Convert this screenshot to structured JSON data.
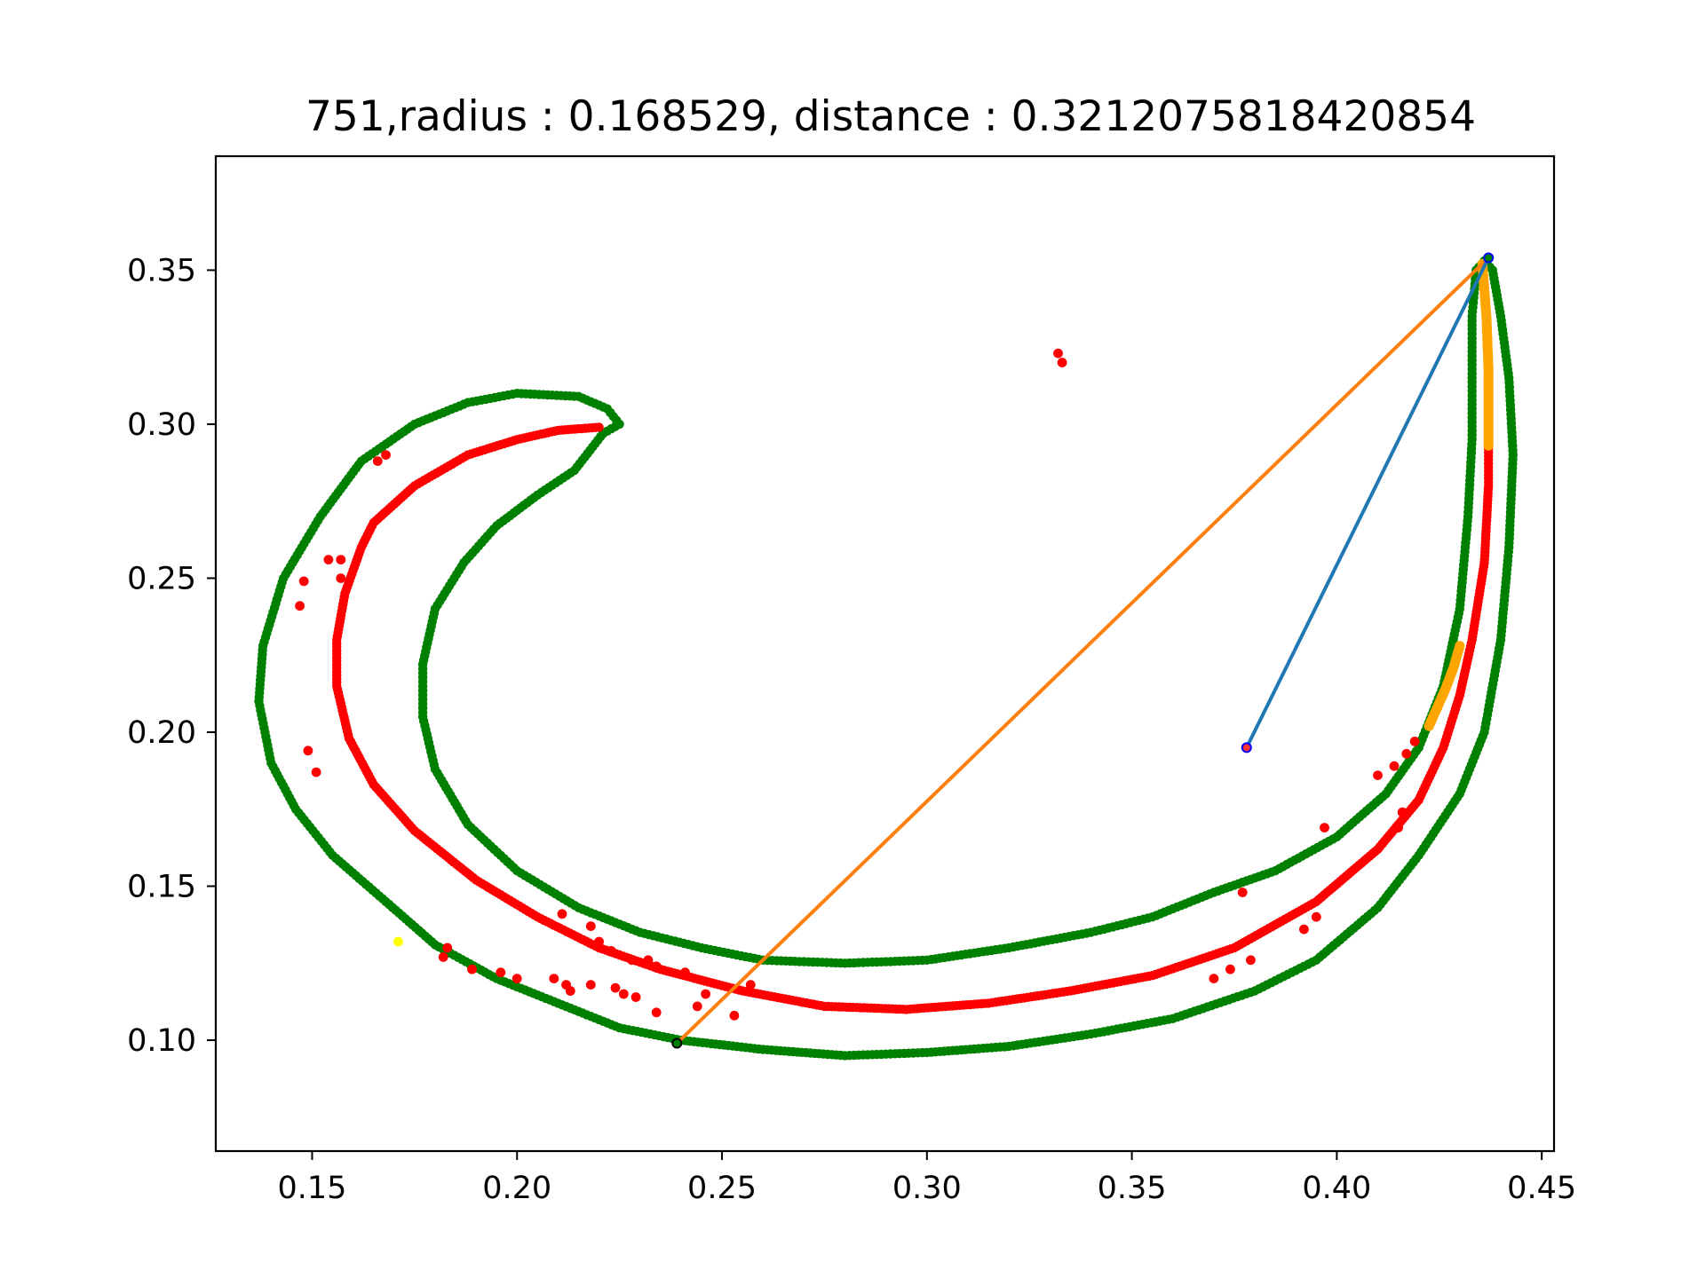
{
  "chart_data": {
    "type": "scatter",
    "title": "751,radius : 0.168529, distance : 0.3212075818420854",
    "xlabel": "",
    "ylabel": "",
    "xlim": [
      0.1265,
      0.453
    ],
    "ylim": [
      0.064,
      0.387
    ],
    "grid": false,
    "x_ticks": [
      {
        "value": 0.15,
        "label": "0.15"
      },
      {
        "value": 0.2,
        "label": "0.20"
      },
      {
        "value": 0.25,
        "label": "0.25"
      },
      {
        "value": 0.3,
        "label": "0.30"
      },
      {
        "value": 0.35,
        "label": "0.35"
      },
      {
        "value": 0.4,
        "label": "0.40"
      },
      {
        "value": 0.45,
        "label": "0.45"
      }
    ],
    "y_ticks": [
      {
        "value": 0.1,
        "label": "0.10"
      },
      {
        "value": 0.15,
        "label": "0.15"
      },
      {
        "value": 0.2,
        "label": "0.20"
      },
      {
        "value": 0.25,
        "label": "0.25"
      },
      {
        "value": 0.3,
        "label": "0.30"
      },
      {
        "value": 0.35,
        "label": "0.35"
      }
    ],
    "colors": {
      "outer_boundary": "#008000",
      "inner_curve": "#ff0000",
      "highlight": "#ffa500",
      "marker_special": "#ffff00",
      "segment_blue": "#1f77b4",
      "segment_orange": "#ff7f0e",
      "endpoint_blue": "#0000ff"
    },
    "outer_boundary": [
      [
        0.221,
        0.297
      ],
      [
        0.225,
        0.3
      ],
      [
        0.222,
        0.305
      ],
      [
        0.215,
        0.309
      ],
      [
        0.2,
        0.31
      ],
      [
        0.188,
        0.307
      ],
      [
        0.175,
        0.3
      ],
      [
        0.162,
        0.288
      ],
      [
        0.152,
        0.27
      ],
      [
        0.143,
        0.25
      ],
      [
        0.138,
        0.228
      ],
      [
        0.137,
        0.21
      ],
      [
        0.14,
        0.19
      ],
      [
        0.146,
        0.175
      ],
      [
        0.155,
        0.16
      ],
      [
        0.168,
        0.145
      ],
      [
        0.18,
        0.131
      ],
      [
        0.195,
        0.12
      ],
      [
        0.21,
        0.112
      ],
      [
        0.225,
        0.104
      ],
      [
        0.24,
        0.1
      ],
      [
        0.26,
        0.097
      ],
      [
        0.28,
        0.095
      ],
      [
        0.3,
        0.096
      ],
      [
        0.32,
        0.098
      ],
      [
        0.34,
        0.102
      ],
      [
        0.36,
        0.107
      ],
      [
        0.38,
        0.116
      ],
      [
        0.395,
        0.126
      ],
      [
        0.41,
        0.143
      ],
      [
        0.42,
        0.16
      ],
      [
        0.43,
        0.18
      ],
      [
        0.436,
        0.2
      ],
      [
        0.44,
        0.23
      ],
      [
        0.442,
        0.26
      ],
      [
        0.443,
        0.29
      ],
      [
        0.442,
        0.315
      ],
      [
        0.44,
        0.335
      ],
      [
        0.438,
        0.35
      ],
      [
        0.436,
        0.353
      ],
      [
        0.434,
        0.35
      ],
      [
        0.433,
        0.335
      ],
      [
        0.433,
        0.315
      ],
      [
        0.433,
        0.295
      ],
      [
        0.432,
        0.27
      ],
      [
        0.43,
        0.24
      ],
      [
        0.426,
        0.215
      ],
      [
        0.42,
        0.195
      ],
      [
        0.412,
        0.18
      ],
      [
        0.4,
        0.166
      ],
      [
        0.385,
        0.155
      ],
      [
        0.37,
        0.148
      ],
      [
        0.355,
        0.14
      ],
      [
        0.34,
        0.135
      ],
      [
        0.32,
        0.13
      ],
      [
        0.3,
        0.126
      ],
      [
        0.28,
        0.125
      ],
      [
        0.26,
        0.126
      ],
      [
        0.245,
        0.13
      ],
      [
        0.23,
        0.135
      ],
      [
        0.215,
        0.143
      ],
      [
        0.2,
        0.155
      ],
      [
        0.188,
        0.17
      ],
      [
        0.18,
        0.188
      ],
      [
        0.177,
        0.205
      ],
      [
        0.177,
        0.222
      ],
      [
        0.18,
        0.24
      ],
      [
        0.187,
        0.255
      ],
      [
        0.195,
        0.267
      ],
      [
        0.205,
        0.277
      ],
      [
        0.214,
        0.285
      ],
      [
        0.221,
        0.297
      ]
    ],
    "inner_curve": [
      [
        0.22,
        0.299
      ],
      [
        0.21,
        0.298
      ],
      [
        0.2,
        0.295
      ],
      [
        0.188,
        0.29
      ],
      [
        0.175,
        0.28
      ],
      [
        0.165,
        0.268
      ],
      [
        0.162,
        0.26
      ],
      [
        0.158,
        0.245
      ],
      [
        0.156,
        0.23
      ],
      [
        0.156,
        0.215
      ],
      [
        0.159,
        0.198
      ],
      [
        0.165,
        0.183
      ],
      [
        0.175,
        0.168
      ],
      [
        0.19,
        0.152
      ],
      [
        0.205,
        0.14
      ],
      [
        0.22,
        0.13
      ],
      [
        0.235,
        0.123
      ],
      [
        0.255,
        0.116
      ],
      [
        0.275,
        0.111
      ],
      [
        0.295,
        0.11
      ],
      [
        0.315,
        0.112
      ],
      [
        0.335,
        0.116
      ],
      [
        0.355,
        0.121
      ],
      [
        0.375,
        0.13
      ],
      [
        0.395,
        0.145
      ],
      [
        0.41,
        0.162
      ],
      [
        0.42,
        0.178
      ],
      [
        0.426,
        0.195
      ],
      [
        0.43,
        0.212
      ],
      [
        0.433,
        0.23
      ],
      [
        0.436,
        0.255
      ],
      [
        0.437,
        0.28
      ],
      [
        0.437,
        0.292
      ]
    ],
    "highlight_segments": [
      [
        [
          0.4355,
          0.352
        ],
        [
          0.4365,
          0.335
        ],
        [
          0.437,
          0.318
        ],
        [
          0.437,
          0.305
        ],
        [
          0.437,
          0.293
        ]
      ],
      [
        [
          0.4225,
          0.202
        ],
        [
          0.4245,
          0.208
        ],
        [
          0.4265,
          0.214
        ],
        [
          0.4285,
          0.221
        ],
        [
          0.43,
          0.228
        ]
      ]
    ],
    "scatter_red": [
      [
        0.332,
        0.323
      ],
      [
        0.333,
        0.32
      ],
      [
        0.166,
        0.288
      ],
      [
        0.168,
        0.29
      ],
      [
        0.154,
        0.256
      ],
      [
        0.157,
        0.256
      ],
      [
        0.157,
        0.25
      ],
      [
        0.148,
        0.249
      ],
      [
        0.147,
        0.241
      ],
      [
        0.149,
        0.194
      ],
      [
        0.151,
        0.187
      ],
      [
        0.183,
        0.13
      ],
      [
        0.182,
        0.127
      ],
      [
        0.189,
        0.123
      ],
      [
        0.196,
        0.122
      ],
      [
        0.2,
        0.12
      ],
      [
        0.209,
        0.12
      ],
      [
        0.212,
        0.118
      ],
      [
        0.213,
        0.116
      ],
      [
        0.218,
        0.118
      ],
      [
        0.211,
        0.141
      ],
      [
        0.218,
        0.137
      ],
      [
        0.22,
        0.132
      ],
      [
        0.223,
        0.129
      ],
      [
        0.228,
        0.126
      ],
      [
        0.232,
        0.126
      ],
      [
        0.234,
        0.124
      ],
      [
        0.224,
        0.117
      ],
      [
        0.226,
        0.115
      ],
      [
        0.229,
        0.114
      ],
      [
        0.234,
        0.109
      ],
      [
        0.241,
        0.122
      ],
      [
        0.244,
        0.111
      ],
      [
        0.246,
        0.115
      ],
      [
        0.253,
        0.108
      ],
      [
        0.257,
        0.118
      ],
      [
        0.377,
        0.148
      ],
      [
        0.37,
        0.12
      ],
      [
        0.374,
        0.123
      ],
      [
        0.379,
        0.126
      ],
      [
        0.392,
        0.136
      ],
      [
        0.395,
        0.14
      ],
      [
        0.397,
        0.169
      ],
      [
        0.41,
        0.186
      ],
      [
        0.414,
        0.189
      ],
      [
        0.417,
        0.193
      ],
      [
        0.419,
        0.197
      ],
      [
        0.415,
        0.169
      ],
      [
        0.416,
        0.174
      ]
    ],
    "marker_special": [
      0.171,
      0.132
    ],
    "segment_blue": [
      [
        0.378,
        0.195
      ],
      [
        0.437,
        0.354
      ]
    ],
    "segment_orange": [
      [
        0.239,
        0.099
      ],
      [
        0.437,
        0.354
      ]
    ]
  }
}
